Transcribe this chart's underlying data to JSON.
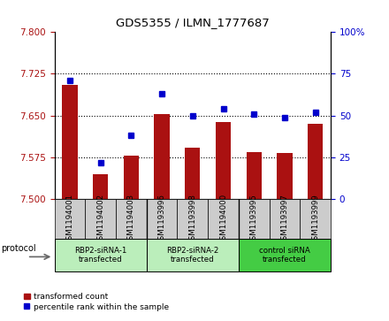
{
  "title": "GDS5355 / ILMN_1777687",
  "samples": [
    "GSM1194001",
    "GSM1194002",
    "GSM1194003",
    "GSM1193996",
    "GSM1193998",
    "GSM1194000",
    "GSM1193995",
    "GSM1193997",
    "GSM1193999"
  ],
  "bar_values": [
    7.705,
    7.545,
    7.578,
    7.652,
    7.592,
    7.638,
    7.585,
    7.583,
    7.635
  ],
  "dot_values": [
    71,
    22,
    38,
    63,
    50,
    54,
    51,
    49,
    52
  ],
  "bar_color": "#aa1111",
  "dot_color": "#0000cc",
  "ylim_left": [
    7.5,
    7.8
  ],
  "ylim_right": [
    0,
    100
  ],
  "yticks_left": [
    7.5,
    7.575,
    7.65,
    7.725,
    7.8
  ],
  "yticks_right": [
    0,
    25,
    50,
    75,
    100
  ],
  "grid_ticks": [
    7.575,
    7.65,
    7.725
  ],
  "groups": [
    {
      "label": "RBP2-siRNA-1\ntransfected",
      "start": 0,
      "end": 3,
      "color": "#bbeebb"
    },
    {
      "label": "RBP2-siRNA-2\ntransfected",
      "start": 3,
      "end": 6,
      "color": "#bbeebb"
    },
    {
      "label": "control siRNA\ntransfected",
      "start": 6,
      "end": 9,
      "color": "#44cc44"
    }
  ],
  "protocol_label": "protocol",
  "legend_bar_label": "transformed count",
  "legend_dot_label": "percentile rank within the sample",
  "background_color": "#ffffff",
  "sample_box_color": "#cccccc"
}
